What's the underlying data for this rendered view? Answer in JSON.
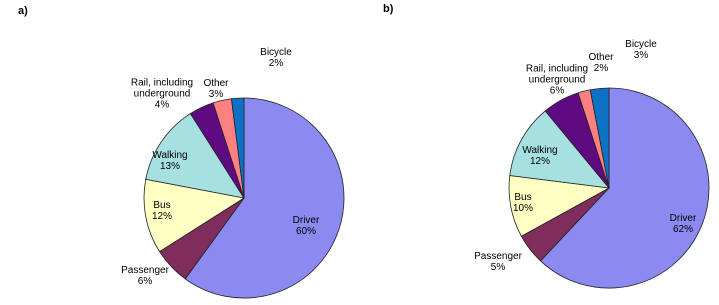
{
  "chart_data": [
    {
      "type": "pie",
      "title": "a)",
      "categories": [
        "Driver",
        "Passenger",
        "Bus",
        "Walking",
        "Rail, including underground",
        "Other",
        "Bicycle"
      ],
      "values": [
        60,
        6,
        12,
        13,
        4,
        3,
        2
      ],
      "value_labels": [
        "60%",
        "6%",
        "12%",
        "13%",
        "4%",
        "3%",
        "2%"
      ],
      "colors": [
        "#8a8af0",
        "#7f2d5c",
        "#ffffc4",
        "#a6e0e0",
        "#5e0a80",
        "#ff8080",
        "#0d72c4"
      ]
    },
    {
      "type": "pie",
      "title": "b)",
      "categories": [
        "Driver",
        "Passenger",
        "Bus",
        "Walking",
        "Rail, including underground",
        "Other",
        "Bicycle"
      ],
      "values": [
        62,
        5,
        10,
        12,
        6,
        2,
        3
      ],
      "value_labels": [
        "62%",
        "5%",
        "10%",
        "12%",
        "6%",
        "2%",
        "3%"
      ],
      "colors": [
        "#8a8af0",
        "#7f2d5c",
        "#ffffc4",
        "#a6e0e0",
        "#5e0a80",
        "#ff8080",
        "#0d72c4"
      ]
    }
  ]
}
